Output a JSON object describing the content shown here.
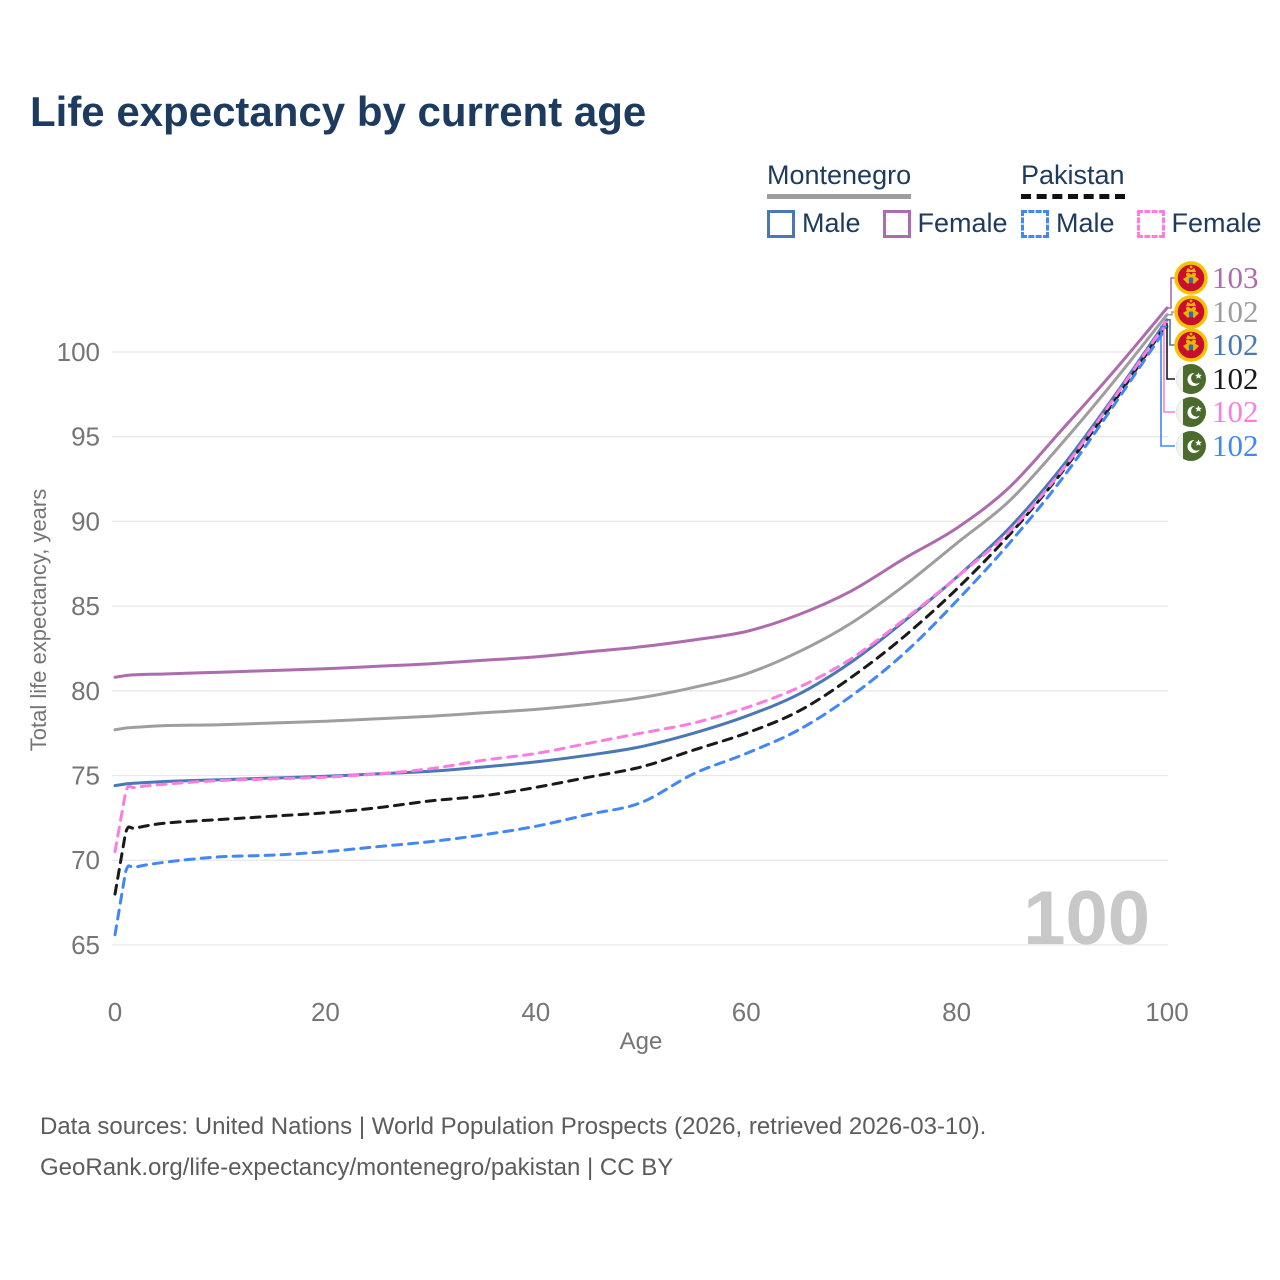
{
  "title": "Life expectancy by current age",
  "legend": {
    "groups": [
      {
        "country": "Montenegro",
        "style": "solid",
        "items": [
          {
            "label": "Male",
            "color_key": "mne_male"
          },
          {
            "label": "Female",
            "color_key": "mne_female"
          }
        ]
      },
      {
        "country": "Pakistan",
        "style": "dashed",
        "items": [
          {
            "label": "Male",
            "color_key": "pak_male"
          },
          {
            "label": "Female",
            "color_key": "pak_female"
          }
        ]
      }
    ]
  },
  "colors": {
    "mne_male": "#4a78b5",
    "mne_female": "#ae6bae",
    "mne_total": "#9e9e9e",
    "pak_male": "#4187f5",
    "pak_female": "#fc7ce0",
    "pak_total": "#1a1a1a",
    "title_text": "#1d3a5f",
    "axis_text": "#757575",
    "gridline": "#e8e8e8",
    "watermark": "#c8c8c8",
    "footer_text": "#5c5c5c",
    "mne_flag_field": "#c8102e",
    "mne_flag_ring": "#f5c400",
    "pak_flag_green": "#4a6b2b"
  },
  "watermark": "100",
  "footer": {
    "line1": "Data sources: United Nations | World Population Prospects (2026, retrieved 2026-03-10).",
    "line2": "GeoRank.org/life-expectancy/montenegro/pakistan | CC BY"
  },
  "chart_data": {
    "type": "line",
    "title": "Life expectancy by current age",
    "xlabel": "Age",
    "ylabel": "Total life expectancy, years",
    "xlim": [
      0,
      100
    ],
    "ylim": [
      63.5,
      104.5
    ],
    "x_ticks": [
      0,
      20,
      40,
      60,
      80,
      100
    ],
    "y_ticks": [
      65,
      70,
      75,
      80,
      85,
      90,
      95,
      100
    ],
    "grid": "horizontal",
    "legend_position": "top-right",
    "x": [
      0,
      1,
      2,
      5,
      10,
      15,
      20,
      25,
      30,
      35,
      40,
      45,
      50,
      55,
      60,
      65,
      70,
      75,
      80,
      85,
      90,
      95,
      100
    ],
    "series": [
      {
        "name": "Montenegro Female",
        "country": "Montenegro",
        "sex": "Female",
        "color_key": "mne_female",
        "dash": "solid",
        "values": [
          80.8,
          80.9,
          80.95,
          81.0,
          81.1,
          81.2,
          81.3,
          81.45,
          81.6,
          81.8,
          82.0,
          82.3,
          82.6,
          83.0,
          83.5,
          84.5,
          85.9,
          87.8,
          89.6,
          92.0,
          95.4,
          98.9,
          102.6
        ],
        "end_label": "103",
        "end_flag": "montenegro"
      },
      {
        "name": "Montenegro Total",
        "country": "Montenegro",
        "sex": "Both",
        "color_key": "mne_total",
        "dash": "solid",
        "values": [
          77.7,
          77.8,
          77.85,
          77.95,
          78.0,
          78.1,
          78.2,
          78.35,
          78.5,
          78.7,
          78.9,
          79.2,
          79.6,
          80.2,
          81.0,
          82.3,
          84.0,
          86.2,
          88.7,
          91.2,
          94.6,
          98.3,
          102.2
        ],
        "end_label": "102",
        "end_flag": "montenegro"
      },
      {
        "name": "Montenegro Male",
        "country": "Montenegro",
        "sex": "Male",
        "color_key": "mne_male",
        "dash": "solid",
        "values": [
          74.4,
          74.5,
          74.55,
          74.65,
          74.75,
          74.85,
          74.95,
          75.1,
          75.25,
          75.5,
          75.8,
          76.2,
          76.7,
          77.5,
          78.5,
          79.8,
          81.7,
          84.1,
          86.7,
          89.6,
          93.2,
          97.4,
          101.9
        ],
        "end_label": "102",
        "end_flag": "montenegro"
      },
      {
        "name": "Pakistan Total",
        "country": "Pakistan",
        "sex": "Both",
        "color_key": "pak_total",
        "dash": "dashed",
        "values": [
          68.0,
          71.6,
          71.9,
          72.2,
          72.4,
          72.6,
          72.8,
          73.1,
          73.5,
          73.8,
          74.3,
          74.9,
          75.5,
          76.5,
          77.5,
          78.8,
          80.8,
          83.2,
          86.0,
          89.2,
          92.9,
          97.1,
          101.7
        ],
        "end_label": "102",
        "end_flag": "pakistan"
      },
      {
        "name": "Pakistan Female",
        "country": "Pakistan",
        "sex": "Female",
        "color_key": "pak_female",
        "dash": "dashed",
        "values": [
          70.5,
          74.0,
          74.3,
          74.5,
          74.7,
          74.8,
          74.9,
          75.1,
          75.4,
          75.9,
          76.3,
          76.9,
          77.5,
          78.1,
          79.0,
          80.2,
          81.9,
          84.2,
          86.7,
          89.4,
          93.0,
          97.3,
          101.8
        ],
        "end_label": "102",
        "end_flag": "pakistan"
      },
      {
        "name": "Pakistan Male",
        "country": "Pakistan",
        "sex": "Male",
        "color_key": "pak_male",
        "dash": "dashed",
        "values": [
          65.6,
          69.3,
          69.6,
          69.9,
          70.2,
          70.3,
          70.5,
          70.8,
          71.1,
          71.5,
          72.0,
          72.7,
          73.4,
          75.1,
          76.3,
          77.7,
          79.7,
          82.2,
          85.3,
          88.7,
          92.5,
          96.9,
          101.5
        ],
        "end_label": "102",
        "end_flag": "pakistan"
      }
    ]
  }
}
